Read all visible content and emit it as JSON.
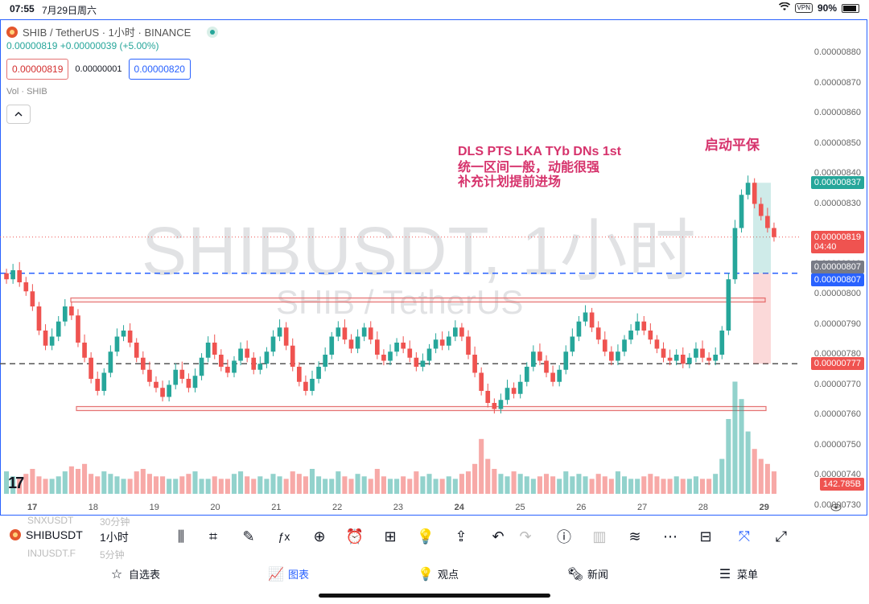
{
  "status_bar": {
    "time": "07:55",
    "date": "7月29日周六",
    "vpn": "VPN",
    "battery": "90%"
  },
  "legend": {
    "symbol_desc": "SHIB / TetherUS · 1小时 · BINANCE",
    "change": "0.00000819 +0.00000039 (+5.00%)",
    "sell_price": "0.00000819",
    "spread": "0.00000001",
    "buy_price": "0.00000820",
    "volume_label": "Vol · SHIB",
    "collapse_glyph": "^"
  },
  "watermark": {
    "main": "SHIBUSDT, 1小时",
    "sub": "SHIB / TetherUS"
  },
  "annotations": {
    "line1": "DLS PTS LKA TYb DNs 1st",
    "line2": "统一区间一般，动能很强",
    "line3": "补充计划提前进场",
    "top_note": "启动平保"
  },
  "price_axis": {
    "ticks": [
      "0.00000880",
      "0.00000870",
      "0.00000860",
      "0.00000850",
      "0.00000840",
      "0.00000830",
      "0.00000810",
      "0.00000800",
      "0.00000790",
      "0.00000780",
      "0.00000770",
      "0.00000760",
      "0.00000750",
      "0.00000740",
      "0.00000730"
    ],
    "labels": [
      {
        "text": "0.00000837",
        "color": "#26a69a"
      },
      {
        "text": "0.00000819",
        "sub": "04:40",
        "color": "#ef5350"
      },
      {
        "text": "0.00000807",
        "color": "#787b86"
      },
      {
        "text": "0.00000807",
        "color": "#2962ff"
      },
      {
        "text": "0.00000777",
        "color": "#ef5350"
      },
      {
        "text": "142.785B",
        "color": "#ef5350"
      }
    ]
  },
  "date_axis": {
    "ticks": [
      "17",
      "18",
      "19",
      "20",
      "21",
      "22",
      "23",
      "24",
      "25",
      "26",
      "27",
      "28",
      "29"
    ]
  },
  "toolbar": {
    "symbol": "SHIBUSDT",
    "interval": "1小时",
    "ghost_top_left": "SNXUSDT",
    "ghost_top_right": "30分钟",
    "ghost_bottom_left": "INJUSDT.F",
    "ghost_bottom_right": "5分钟",
    "icons": [
      "candles-icon",
      "indicator-icon",
      "draw-icon",
      "fx-icon",
      "plus-icon",
      "alert-icon",
      "layout-icon",
      "idea-icon",
      "share-icon",
      "undo-icon",
      "redo-icon",
      "info-icon",
      "compare-icon",
      "replay-icon",
      "more-icon",
      "split-icon",
      "fullscreen-snap-icon",
      "expand-icon"
    ]
  },
  "bottom_nav": {
    "items": [
      {
        "label": "自选表",
        "icon": "star-icon"
      },
      {
        "label": "图表",
        "icon": "chart-icon",
        "active": true
      },
      {
        "label": "观点",
        "icon": "bulb-icon"
      },
      {
        "label": "新闻",
        "icon": "news-icon"
      },
      {
        "label": "菜单",
        "icon": "menu-icon"
      }
    ]
  },
  "chart_data": {
    "type": "candlestick",
    "symbol": "SHIBUSDT",
    "interval": "1h",
    "ylim": [
      7.3e-06,
      8.8e-06
    ],
    "x_ticks": [
      "17",
      "18",
      "19",
      "20",
      "21",
      "22",
      "23",
      "24",
      "25",
      "26",
      "27",
      "28",
      "29"
    ],
    "range_box": {
      "top": 7.98e-06,
      "bottom": 7.62e-06
    },
    "horizontal_lines": [
      {
        "price": 8.07e-06,
        "style": "dashed",
        "color": "#2962ff"
      },
      {
        "price": 7.77e-06,
        "style": "dashed",
        "color": "#555555"
      },
      {
        "price": 8.19e-06,
        "style": "dotted",
        "color": "#ef5350"
      }
    ],
    "position": {
      "entry": 7.77e-06,
      "stop_equal_entry": 8.07e-06,
      "target": 8.37e-06
    },
    "last_price": 8.19e-06,
    "last_volume": "142.785B",
    "closes": [
      8.05e-06,
      8.08e-06,
      8.04e-06,
      8.01e-06,
      7.96e-06,
      7.88e-06,
      7.83e-06,
      7.86e-06,
      7.91e-06,
      7.96e-06,
      7.93e-06,
      7.84e-06,
      7.79e-06,
      7.72e-06,
      7.68e-06,
      7.74e-06,
      7.81e-06,
      7.86e-06,
      7.88e-06,
      7.84e-06,
      7.79e-06,
      7.75e-06,
      7.71e-06,
      7.69e-06,
      7.66e-06,
      7.7e-06,
      7.75e-06,
      7.72e-06,
      7.69e-06,
      7.73e-06,
      7.79e-06,
      7.84e-06,
      7.8e-06,
      7.76e-06,
      7.74e-06,
      7.78e-06,
      7.82e-06,
      7.79e-06,
      7.75e-06,
      7.77e-06,
      7.81e-06,
      7.86e-06,
      7.89e-06,
      7.83e-06,
      7.76e-06,
      7.71e-06,
      7.68e-06,
      7.72e-06,
      7.76e-06,
      7.8e-06,
      7.86e-06,
      7.89e-06,
      7.85e-06,
      7.82e-06,
      7.86e-06,
      7.89e-06,
      7.85e-06,
      7.8e-06,
      7.78e-06,
      7.81e-06,
      7.84e-06,
      7.82e-06,
      7.79e-06,
      7.76e-06,
      7.78e-06,
      7.82e-06,
      7.85e-06,
      7.83e-06,
      7.86e-06,
      7.89e-06,
      7.86e-06,
      7.8e-06,
      7.74e-06,
      7.68e-06,
      7.64e-06,
      7.62e-06,
      7.65e-06,
      7.69e-06,
      7.67e-06,
      7.71e-06,
      7.76e-06,
      7.81e-06,
      7.78e-06,
      7.74e-06,
      7.71e-06,
      7.75e-06,
      7.81e-06,
      7.86e-06,
      7.91e-06,
      7.94e-06,
      7.89e-06,
      7.85e-06,
      7.81e-06,
      7.78e-06,
      7.81e-06,
      7.85e-06,
      7.88e-06,
      7.91e-06,
      7.88e-06,
      7.85e-06,
      7.82e-06,
      7.79e-06,
      7.78e-06,
      7.8e-06,
      7.77e-06,
      7.79e-06,
      7.82e-06,
      7.79e-06,
      7.78e-06,
      7.8e-06,
      7.88e-06,
      8.05e-06,
      8.22e-06,
      8.33e-06,
      8.37e-06,
      8.3e-06,
      8.26e-06,
      8.22e-06,
      8.19e-06
    ],
    "volumes": [
      9,
      7,
      6,
      8,
      10,
      7,
      6,
      6,
      7,
      9,
      11,
      10,
      12,
      8,
      7,
      9,
      8,
      7,
      6,
      6,
      9,
      10,
      8,
      7,
      7,
      6,
      6,
      7,
      8,
      9,
      6,
      6,
      7,
      6,
      6,
      8,
      9,
      7,
      6,
      7,
      6,
      8,
      7,
      6,
      9,
      8,
      7,
      10,
      7,
      6,
      6,
      9,
      7,
      6,
      8,
      7,
      6,
      10,
      7,
      6,
      6,
      7,
      6,
      9,
      7,
      8,
      6,
      6,
      7,
      6,
      8,
      9,
      12,
      22,
      14,
      10,
      8,
      7,
      9,
      8,
      7,
      6,
      7,
      8,
      7,
      6,
      9,
      7,
      8,
      7,
      6,
      8,
      7,
      6,
      9,
      7,
      6,
      6,
      7,
      8,
      7,
      6,
      6,
      7,
      6,
      6,
      7,
      6,
      6,
      8,
      14,
      30,
      45,
      38,
      25,
      18,
      14,
      12,
      9
    ]
  }
}
